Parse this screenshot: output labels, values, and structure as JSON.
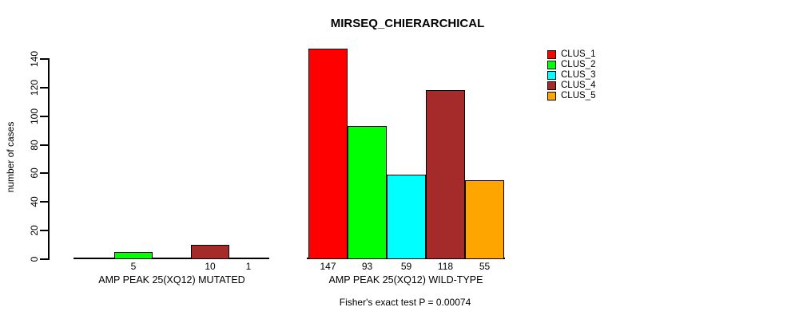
{
  "chart_data": {
    "type": "bar",
    "title": "MIRSEQ_CHIERARCHICAL",
    "xlabel": "",
    "ylabel": "number of cases",
    "ylim": [
      0,
      140
    ],
    "yticks": [
      0,
      20,
      40,
      60,
      80,
      100,
      120,
      140
    ],
    "grid": false,
    "legend_position": "top-right",
    "background": "#ffffff",
    "categories": [
      "AMP PEAK 25(XQ12) MUTATED",
      "AMP PEAK 25(XQ12) WILD-TYPE"
    ],
    "series": [
      {
        "name": "CLUS_1",
        "color": "#FF0000",
        "values": [
          0,
          147
        ]
      },
      {
        "name": "CLUS_2",
        "color": "#00FF00",
        "values": [
          5,
          93
        ]
      },
      {
        "name": "CLUS_3",
        "color": "#00FFFF",
        "values": [
          0,
          59
        ]
      },
      {
        "name": "CLUS_4",
        "color": "#A52A2A",
        "values": [
          10,
          118
        ]
      },
      {
        "name": "CLUS_5",
        "color": "#FFA500",
        "values": [
          1,
          55
        ]
      }
    ],
    "bar_value_labels": [
      [
        "",
        "5",
        "",
        "10",
        "1"
      ],
      [
        "147",
        "93",
        "59",
        "118",
        "55"
      ]
    ],
    "annotation": "Fisher's exact test P = 0.00074"
  }
}
